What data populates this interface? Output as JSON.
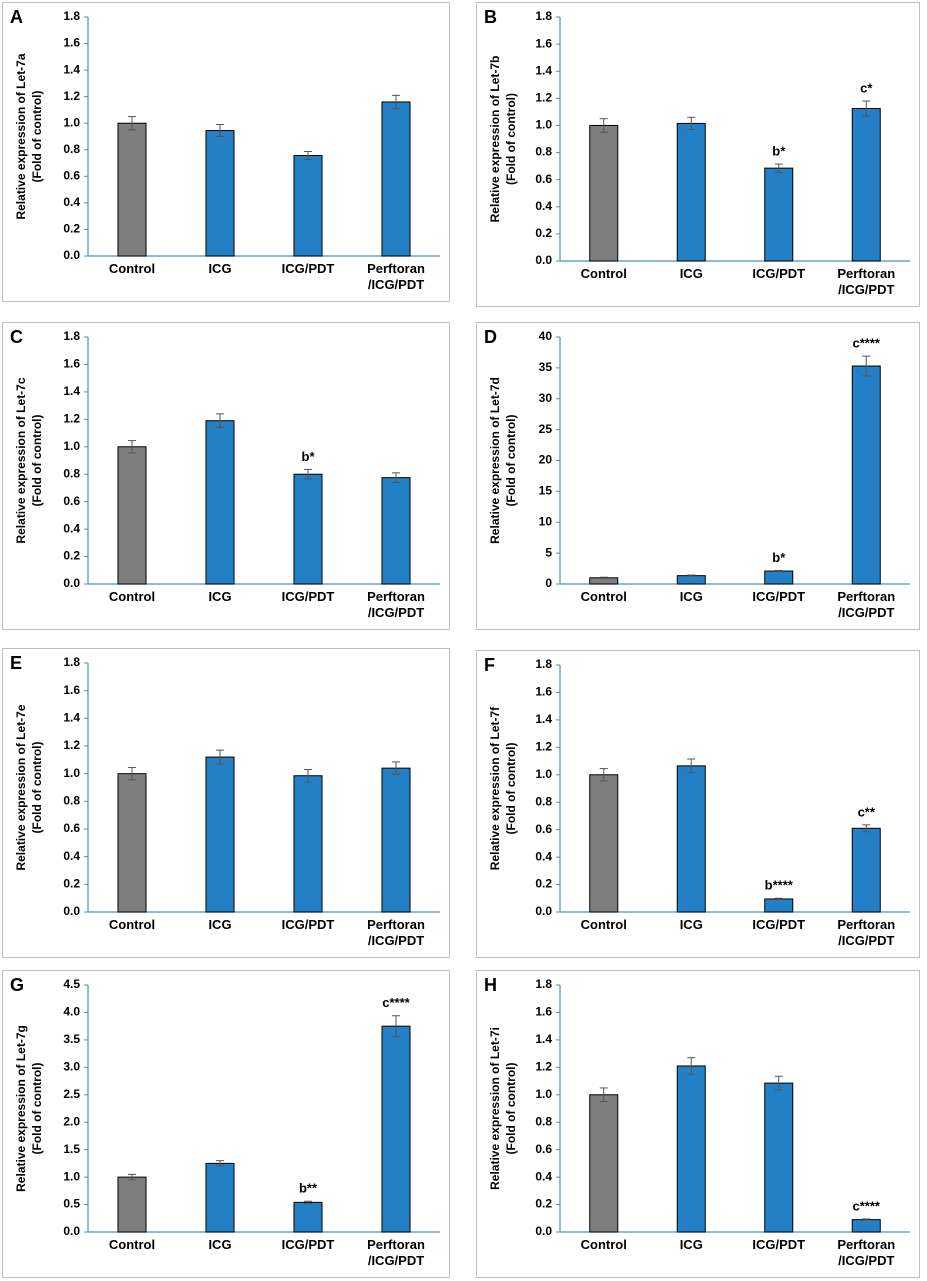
{
  "chart_data": [
    {
      "type": "bar",
      "panel": "A",
      "ylabel": [
        "Relative expression of Let-7a",
        "(Fold of control)"
      ],
      "categories": [
        "Control",
        "ICG",
        "ICG/PDT",
        "Perftoran\n/ICG/PDT"
      ],
      "values": [
        1.0,
        0.945,
        0.757,
        1.16
      ],
      "errors": [
        0.05,
        0.045,
        0.03,
        0.05
      ],
      "annotations": [
        null,
        null,
        null,
        null
      ],
      "colors": [
        "#7f7f7f",
        "#2480c6",
        "#2480c6",
        "#2480c6"
      ],
      "ylim": [
        0,
        1.8
      ],
      "yticks": [
        {
          "value": 0,
          "label": "0.0"
        },
        0.2,
        0.4,
        0.6,
        0.8,
        {
          "value": 1,
          "label": "1.0"
        },
        1.2,
        1.4,
        1.6,
        1.8
      ]
    },
    {
      "type": "bar",
      "panel": "B",
      "ylabel": [
        "Relative expression of Let-7b",
        "(Fold of control)"
      ],
      "categories": [
        "Control",
        "ICG",
        "ICG/PDT",
        "Perftoran\n/ICG/PDT"
      ],
      "values": [
        1.0,
        1.015,
        0.685,
        1.125
      ],
      "errors": [
        0.05,
        0.045,
        0.03,
        0.055
      ],
      "annotations": [
        null,
        null,
        "b*",
        "c*"
      ],
      "colors": [
        "#7f7f7f",
        "#2480c6",
        "#2480c6",
        "#2480c6"
      ],
      "ylim": [
        0,
        1.8
      ],
      "yticks": [
        {
          "value": 0,
          "label": "0.0"
        },
        0.2,
        0.4,
        0.6,
        0.8,
        {
          "value": 1,
          "label": "1.0"
        },
        1.2,
        1.4,
        1.6,
        1.8
      ]
    },
    {
      "type": "bar",
      "panel": "C",
      "ylabel": [
        "Relative expression of Let-7c",
        "(Fold of control)"
      ],
      "categories": [
        "Control",
        "ICG",
        "ICG/PDT",
        "Perftoran\n/ICG/PDT"
      ],
      "values": [
        1.0,
        1.19,
        0.8,
        0.775
      ],
      "errors": [
        0.045,
        0.05,
        0.035,
        0.035
      ],
      "annotations": [
        null,
        null,
        "b*",
        null
      ],
      "colors": [
        "#7f7f7f",
        "#2480c6",
        "#2480c6",
        "#2480c6"
      ],
      "ylim": [
        0,
        1.8
      ],
      "yticks": [
        {
          "value": 0,
          "label": "0.0"
        },
        0.2,
        0.4,
        0.6,
        0.8,
        {
          "value": 1,
          "label": "1.0"
        },
        1.2,
        1.4,
        1.6,
        1.8
      ]
    },
    {
      "type": "bar",
      "panel": "D",
      "ylabel": [
        "Relative expression of Let-7d",
        "(Fold of control)"
      ],
      "categories": [
        "Control",
        "ICG",
        "ICG/PDT",
        "Perftoran\n/ICG/PDT"
      ],
      "values": [
        1.0,
        1.35,
        2.1,
        35.3
      ],
      "errors": [
        0.1,
        0.1,
        0.1,
        1.6
      ],
      "annotations": [
        null,
        null,
        "b*",
        "c****"
      ],
      "colors": [
        "#7f7f7f",
        "#2480c6",
        "#2480c6",
        "#2480c6"
      ],
      "ylim": [
        0,
        40
      ],
      "yticks": [
        0,
        5,
        10,
        15,
        20,
        25,
        30,
        35,
        40
      ]
    },
    {
      "type": "bar",
      "panel": "E",
      "ylabel": [
        "Relative expression of Let-7e",
        "(Fold of control)"
      ],
      "categories": [
        "Control",
        "ICG",
        "ICG/PDT",
        "Perftoran\n/ICG/PDT"
      ],
      "values": [
        1.0,
        1.12,
        0.985,
        1.04
      ],
      "errors": [
        0.045,
        0.05,
        0.045,
        0.045
      ],
      "annotations": [
        null,
        null,
        null,
        null
      ],
      "colors": [
        "#7f7f7f",
        "#2480c6",
        "#2480c6",
        "#2480c6"
      ],
      "ylim": [
        0,
        1.8
      ],
      "yticks": [
        {
          "value": 0,
          "label": "0.0"
        },
        0.2,
        0.4,
        0.6,
        0.8,
        {
          "value": 1,
          "label": "1.0"
        },
        1.2,
        1.4,
        1.6,
        1.8
      ]
    },
    {
      "type": "bar",
      "panel": "F",
      "ylabel": [
        "Relative expression of Let-7f",
        "(Fold of control)"
      ],
      "categories": [
        "Control",
        "ICG",
        "ICG/PDT",
        "Perftoran\n/ICG/PDT"
      ],
      "values": [
        1.0,
        1.065,
        0.095,
        0.61
      ],
      "errors": [
        0.045,
        0.05,
        0.005,
        0.025
      ],
      "annotations": [
        null,
        null,
        "b****",
        "c**"
      ],
      "colors": [
        "#7f7f7f",
        "#2480c6",
        "#2480c6",
        "#2480c6"
      ],
      "ylim": [
        0,
        1.8
      ],
      "yticks": [
        {
          "value": 0,
          "label": "0.0"
        },
        0.2,
        0.4,
        0.6,
        0.8,
        {
          "value": 1,
          "label": "1.0"
        },
        1.2,
        1.4,
        1.6,
        1.8
      ]
    },
    {
      "type": "bar",
      "panel": "G",
      "ylabel": [
        "Relative expression of Let-7g",
        "(Fold of control)"
      ],
      "categories": [
        "Control",
        "ICG",
        "ICG/PDT",
        "Perftoran\n/ICG/PDT"
      ],
      "values": [
        1.0,
        1.25,
        0.54,
        3.75
      ],
      "errors": [
        0.05,
        0.05,
        0.02,
        0.19
      ],
      "annotations": [
        null,
        null,
        "b**",
        "c****"
      ],
      "colors": [
        "#7f7f7f",
        "#2480c6",
        "#2480c6",
        "#2480c6"
      ],
      "ylim": [
        0,
        4.5
      ],
      "yticks": [
        {
          "value": 0,
          "label": "0.0"
        },
        0.5,
        {
          "value": 1,
          "label": "1.0"
        },
        1.5,
        {
          "value": 2,
          "label": "2.0"
        },
        2.5,
        {
          "value": 3,
          "label": "3.0"
        },
        3.5,
        {
          "value": 4,
          "label": "4.0"
        },
        4.5
      ]
    },
    {
      "type": "bar",
      "panel": "H",
      "ylabel": [
        "Relative expression of Let-7i",
        "(Fold of control)"
      ],
      "categories": [
        "Control",
        "ICG",
        "ICG/PDT",
        "Perftoran\n/ICG/PDT"
      ],
      "values": [
        1.0,
        1.21,
        1.085,
        0.09
      ],
      "errors": [
        0.05,
        0.06,
        0.05,
        0.005
      ],
      "annotations": [
        null,
        null,
        null,
        "c****"
      ],
      "colors": [
        "#7f7f7f",
        "#2480c6",
        "#2480c6",
        "#2480c6"
      ],
      "ylim": [
        0,
        1.8
      ],
      "yticks": [
        {
          "value": 0,
          "label": "0.0"
        },
        0.2,
        0.4,
        0.6,
        0.8,
        {
          "value": 1,
          "label": "1.0"
        },
        1.2,
        1.4,
        1.6,
        1.8
      ]
    }
  ]
}
